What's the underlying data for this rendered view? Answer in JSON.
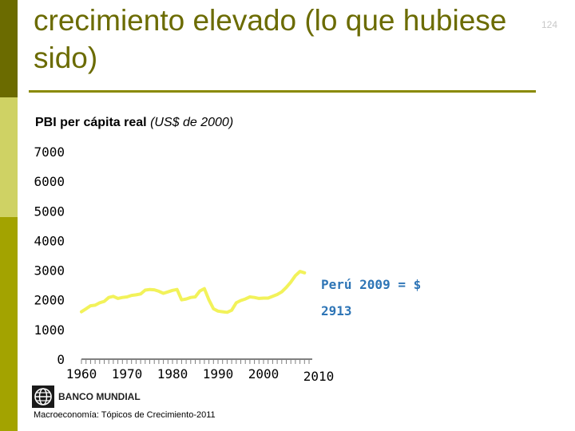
{
  "slide": {
    "title": "crecimiento elevado (lo que hubiese sido)",
    "slide_number": "124",
    "footer": "Macroeconomía: Tópicos de Crecimiento-2011",
    "logo_text": "BANCO MUNDIAL"
  },
  "colors": {
    "sidebar": [
      "#6b6b00",
      "#cfd264",
      "#a3a300"
    ],
    "line": "#f2f25a",
    "annotation": "#2e75b6",
    "title": "#6b6b00"
  },
  "chart_data": {
    "type": "line",
    "title": "PBI per cápita real",
    "title_units": "(US$ de 2000)",
    "xlabel": "",
    "ylabel": "",
    "x_ticks": [
      1960,
      1970,
      1980,
      1990,
      2000,
      2010
    ],
    "y_ticks": [
      0,
      1000,
      2000,
      3000,
      4000,
      5000,
      6000,
      7000
    ],
    "ylim": [
      0,
      7000
    ],
    "xlim": [
      1960,
      2010
    ],
    "grid": false,
    "annotation_lines": [
      "Perú 2009 = $",
      "2913"
    ],
    "series": [
      {
        "x": [
          1960,
          1961,
          1962,
          1963,
          1964,
          1965,
          1966,
          1967,
          1968,
          1969,
          1970,
          1971,
          1972,
          1973,
          1974,
          1975,
          1976,
          1977,
          1978,
          1979,
          1980,
          1981,
          1982,
          1983,
          1984,
          1985,
          1986,
          1987,
          1988,
          1989,
          1990,
          1991,
          1992,
          1993,
          1994,
          1995,
          1996,
          1997,
          1998,
          1999,
          2000,
          2001,
          2002,
          2003,
          2004,
          2005,
          2006,
          2007,
          2008,
          2009
        ],
        "y": [
          1600,
          1700,
          1800,
          1820,
          1900,
          1950,
          2080,
          2120,
          2050,
          2080,
          2100,
          2150,
          2170,
          2200,
          2330,
          2350,
          2340,
          2290,
          2220,
          2270,
          2320,
          2350,
          2000,
          2030,
          2080,
          2100,
          2300,
          2380,
          2000,
          1700,
          1620,
          1600,
          1580,
          1650,
          1900,
          1980,
          2030,
          2100,
          2080,
          2050,
          2060,
          2060,
          2120,
          2180,
          2270,
          2420,
          2600,
          2820,
          2960,
          2913
        ]
      }
    ]
  }
}
